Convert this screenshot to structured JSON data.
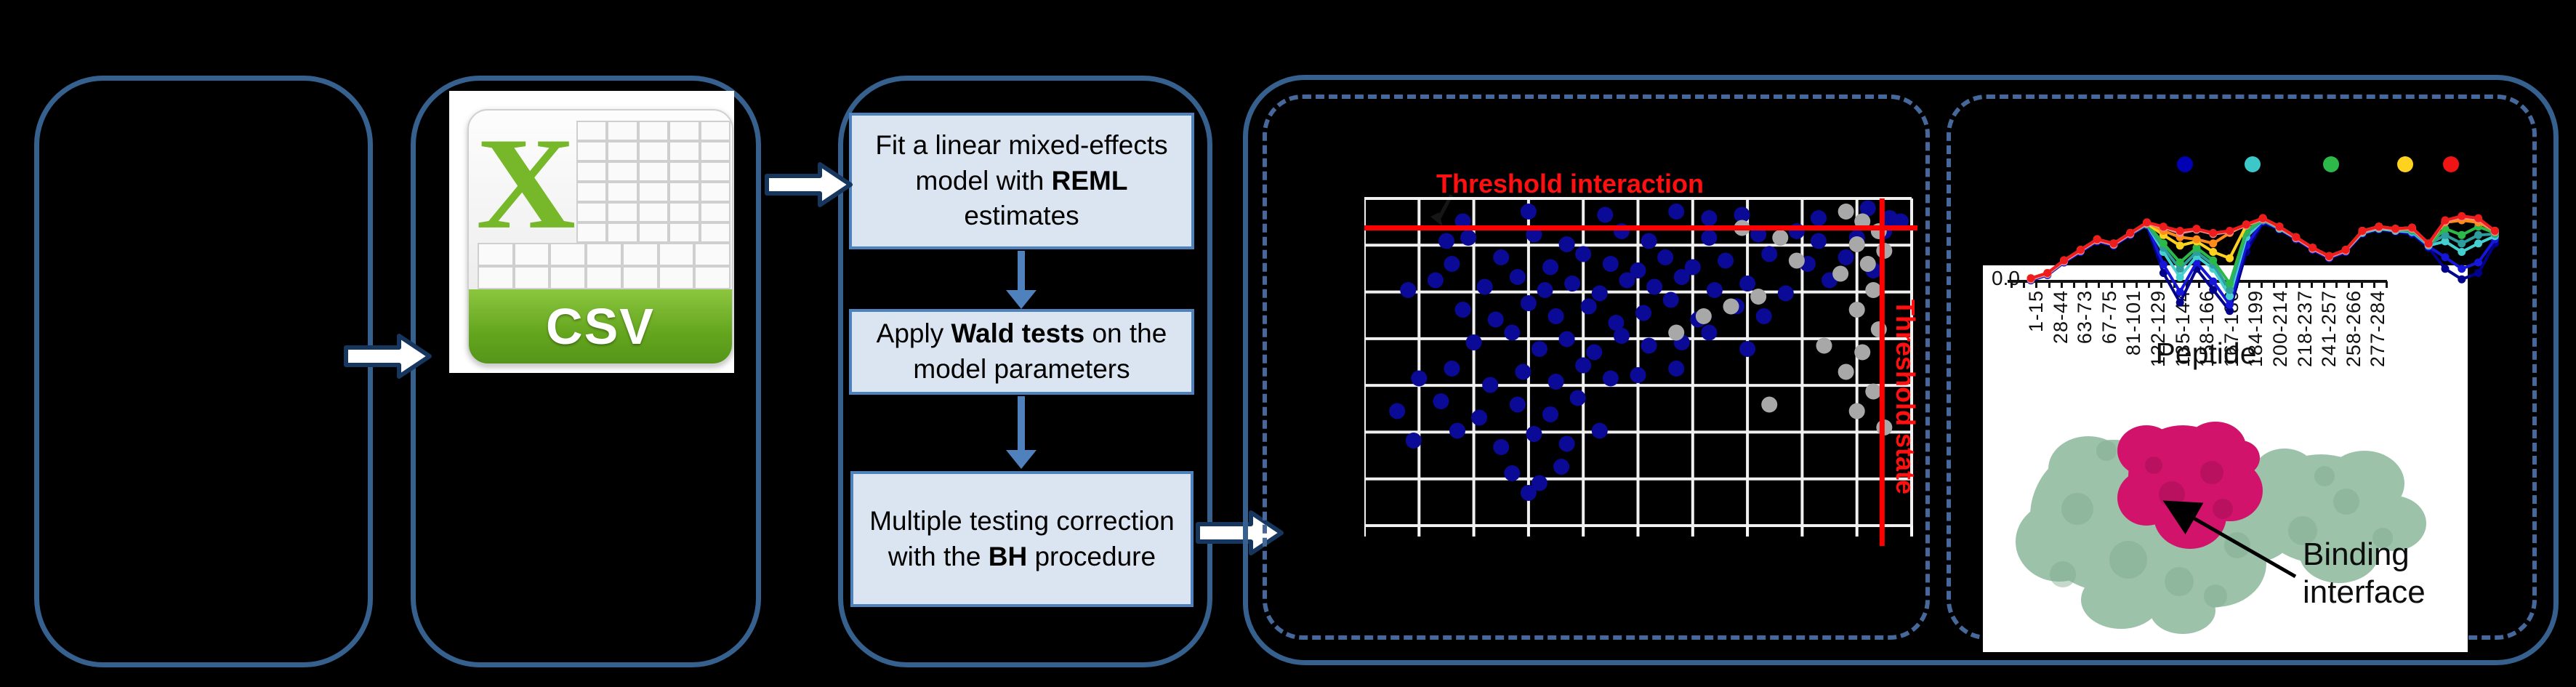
{
  "flow": {
    "box1": [
      {
        "t": "Fit a linear mixed-effects model with "
      },
      {
        "t": "REML",
        "b": true
      },
      {
        "t": " estimates"
      }
    ],
    "box2": [
      {
        "t": "Apply "
      },
      {
        "t": "Wald tests",
        "b": true
      },
      {
        "t": " on the model parameters"
      }
    ],
    "box3": [
      {
        "t": "Multiple testing correction with the "
      },
      {
        "t": "BH",
        "b": true
      },
      {
        "t": " procedure"
      }
    ]
  },
  "csv": {
    "letter": "X",
    "label": "CSV"
  },
  "scatter": {
    "title": "Threshold interaction",
    "side_label": "Threshold state",
    "colors": {
      "point": "#0a0a96",
      "extra": "#a8a8a8",
      "threshold": "#ff0000",
      "grid": "#f0f0f0"
    },
    "grid": {
      "cols": 10,
      "rows": 7
    },
    "red_hline_pct": 9,
    "red_vline_pct": 94.6,
    "points_blue": [
      [
        30,
        4
      ],
      [
        44,
        5
      ],
      [
        57,
        4
      ],
      [
        69,
        5
      ],
      [
        92,
        3
      ],
      [
        96,
        6
      ],
      [
        18,
        7
      ],
      [
        83,
        6
      ],
      [
        63,
        6
      ],
      [
        15,
        13
      ],
      [
        19,
        12
      ],
      [
        31,
        11
      ],
      [
        37,
        14
      ],
      [
        47,
        10
      ],
      [
        52,
        13
      ],
      [
        63,
        12
      ],
      [
        72,
        11
      ],
      [
        79,
        10
      ],
      [
        83,
        13
      ],
      [
        90,
        12
      ],
      [
        95,
        10
      ],
      [
        98,
        7
      ],
      [
        16,
        20
      ],
      [
        25,
        18
      ],
      [
        34,
        21
      ],
      [
        40,
        17
      ],
      [
        45,
        20
      ],
      [
        50,
        22
      ],
      [
        55,
        18
      ],
      [
        60,
        21
      ],
      [
        66,
        19
      ],
      [
        74,
        17
      ],
      [
        81,
        20
      ],
      [
        88,
        18
      ],
      [
        93,
        22
      ],
      [
        8,
        28
      ],
      [
        13,
        25
      ],
      [
        22,
        27
      ],
      [
        28,
        24
      ],
      [
        33,
        28
      ],
      [
        38,
        26
      ],
      [
        43,
        29
      ],
      [
        48,
        25
      ],
      [
        53,
        27
      ],
      [
        58,
        24
      ],
      [
        64,
        28
      ],
      [
        70,
        26
      ],
      [
        77,
        29
      ],
      [
        85,
        25
      ],
      [
        18,
        34
      ],
      [
        24,
        37
      ],
      [
        30,
        32
      ],
      [
        35,
        36
      ],
      [
        41,
        33
      ],
      [
        46,
        38
      ],
      [
        51,
        35
      ],
      [
        56,
        31
      ],
      [
        61,
        37
      ],
      [
        68,
        33
      ],
      [
        73,
        36
      ],
      [
        20,
        44
      ],
      [
        27,
        41
      ],
      [
        32,
        46
      ],
      [
        37,
        43
      ],
      [
        42,
        47
      ],
      [
        47,
        42
      ],
      [
        52,
        45
      ],
      [
        58,
        44
      ],
      [
        63,
        41
      ],
      [
        70,
        46
      ],
      [
        10,
        55
      ],
      [
        16,
        52
      ],
      [
        23,
        57
      ],
      [
        29,
        53
      ],
      [
        35,
        56
      ],
      [
        40,
        51
      ],
      [
        45,
        55
      ],
      [
        50,
        54
      ],
      [
        57,
        52
      ],
      [
        6,
        65
      ],
      [
        14,
        62
      ],
      [
        21,
        67
      ],
      [
        28,
        63
      ],
      [
        34,
        66
      ],
      [
        39,
        61
      ],
      [
        9,
        74
      ],
      [
        17,
        71
      ],
      [
        25,
        76
      ],
      [
        31,
        72
      ],
      [
        37,
        75
      ],
      [
        43,
        71
      ],
      [
        27,
        84
      ],
      [
        32,
        87
      ],
      [
        36,
        82
      ],
      [
        30,
        90
      ]
    ],
    "points_gray": [
      [
        88,
        4
      ],
      [
        91,
        7
      ],
      [
        94,
        10
      ],
      [
        90,
        14
      ],
      [
        95,
        16
      ],
      [
        92,
        20
      ],
      [
        87,
        23
      ],
      [
        93,
        28
      ],
      [
        90,
        34
      ],
      [
        94,
        40
      ],
      [
        91,
        47
      ],
      [
        88,
        53
      ],
      [
        93,
        59
      ],
      [
        90,
        65
      ],
      [
        95,
        70
      ],
      [
        76,
        12
      ],
      [
        72,
        30
      ],
      [
        67,
        33
      ],
      [
        62,
        36
      ],
      [
        79,
        19
      ],
      [
        84,
        45
      ],
      [
        74,
        63
      ],
      [
        69,
        9
      ],
      [
        57,
        41
      ]
    ]
  },
  "uptake": {
    "legend_colors": [
      "#0000b4",
      "#3cc8c8",
      "#2db84a",
      "#ffd21f",
      "#f01414"
    ],
    "ytick": "0.0",
    "xlabel": "Peptide",
    "xlabels": [
      "1-15",
      "28-44",
      "63-73",
      "67-75",
      "81-101",
      "122-129",
      "135-144",
      "158-166",
      "167-180",
      "184-199",
      "200-214",
      "218-237",
      "241-257",
      "258-266",
      "277-284"
    ],
    "series": [
      {
        "name": "navy",
        "color": "#00008b",
        "values": [
          97,
          92,
          80,
          70,
          60,
          64,
          54,
          45,
          90,
          118,
          86,
          106,
          126,
          70,
          42,
          49,
          58,
          68,
          76,
          70,
          53,
          49,
          51,
          53,
          66,
          86,
          96,
          90,
          62
        ]
      },
      {
        "name": "blue",
        "color": "#1616d8",
        "values": [
          97,
          92,
          80,
          70,
          60,
          64,
          54,
          44,
          82,
          108,
          80,
          98,
          120,
          64,
          41,
          48,
          58,
          68,
          76,
          70,
          52,
          48,
          50,
          52,
          65,
          75,
          86,
          80,
          58
        ]
      },
      {
        "name": "cyan",
        "color": "#45cfd0",
        "values": [
          96,
          91,
          79,
          69,
          59,
          63,
          53,
          44,
          70,
          94,
          74,
          86,
          112,
          56,
          40,
          48,
          57,
          67,
          75,
          69,
          52,
          48,
          50,
          51,
          64,
          60,
          70,
          62,
          55
        ]
      },
      {
        "name": "teal",
        "color": "#2e9d9d",
        "values": [
          96,
          91,
          79,
          69,
          59,
          63,
          53,
          44,
          66,
          86,
          70,
          82,
          106,
          52,
          40,
          47,
          57,
          67,
          75,
          69,
          51,
          47,
          49,
          50,
          63,
          54,
          62,
          54,
          53
        ]
      },
      {
        "name": "green",
        "color": "#2db84a",
        "values": [
          96,
          91,
          79,
          69,
          59,
          63,
          53,
          43,
          62,
          80,
          66,
          78,
          100,
          50,
          39,
          47,
          57,
          67,
          75,
          69,
          51,
          47,
          49,
          49,
          63,
          48,
          54,
          46,
          52
        ]
      },
      {
        "name": "yellow",
        "color": "#ffd21f",
        "values": [
          95,
          90,
          78,
          68,
          58,
          62,
          52,
          43,
          54,
          64,
          60,
          70,
          76,
          45,
          38,
          46,
          56,
          66,
          74,
          68,
          50,
          46,
          48,
          47,
          62,
          41,
          38,
          40,
          50
        ]
      },
      {
        "name": "orange",
        "color": "#ff8c1a",
        "values": [
          95,
          90,
          78,
          68,
          58,
          62,
          52,
          42,
          50,
          56,
          58,
          62,
          52,
          44,
          38,
          46,
          56,
          66,
          74,
          68,
          50,
          46,
          48,
          47,
          62,
          42,
          40,
          42,
          50
        ]
      },
      {
        "name": "salmon",
        "color": "#f08c8c",
        "values": [
          96,
          91,
          79,
          69,
          59,
          63,
          53,
          43,
          47,
          52,
          49,
          53,
          51,
          45,
          39,
          47,
          57,
          67,
          75,
          69,
          51,
          47,
          49,
          48,
          63,
          41,
          37,
          39,
          51
        ]
      },
      {
        "name": "red",
        "color": "#ee1c1c",
        "values": [
          95,
          90,
          78,
          68,
          58,
          62,
          52,
          42,
          46,
          50,
          48,
          52,
          50,
          44,
          38,
          46,
          56,
          66,
          74,
          68,
          50,
          46,
          48,
          47,
          62,
          40,
          36,
          38,
          50
        ]
      }
    ]
  },
  "protein": {
    "caption": "Binding interface"
  }
}
